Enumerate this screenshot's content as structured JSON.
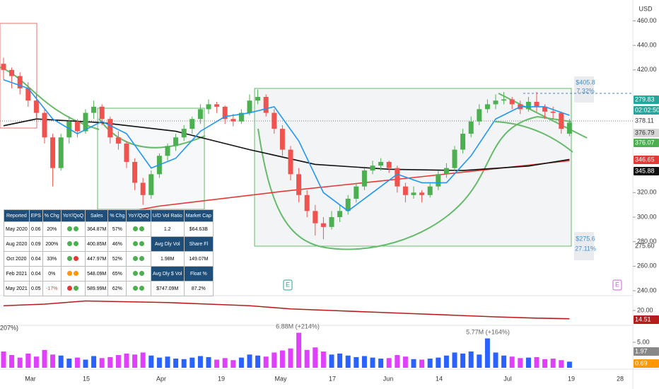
{
  "chart_data": {
    "type": "candlestick",
    "currency": "USD",
    "ylim": [
      236,
      477
    ],
    "yticks": [
      {
        "value": 460,
        "label": "460.00"
      },
      {
        "value": 440,
        "label": "440.00"
      },
      {
        "value": 420,
        "label": "420.00"
      },
      {
        "value": 320,
        "label": "320.00"
      },
      {
        "value": 300,
        "label": "300.00"
      },
      {
        "value": 280,
        "label": "280.00"
      },
      {
        "value": 260,
        "label": "260.00"
      },
      {
        "value": 240,
        "label": "240.00"
      }
    ],
    "x_labels": [
      "Mar",
      "15",
      "Apr",
      "19",
      "May",
      "17",
      "Jun",
      "14",
      "Jul",
      "19",
      "28"
    ],
    "up_color": "#4caf50",
    "down_color": "#ef5350",
    "candles": [
      [
        425,
        430,
        412,
        420
      ],
      [
        420,
        422,
        405,
        415
      ],
      [
        415,
        418,
        400,
        405
      ],
      [
        405,
        410,
        390,
        395
      ],
      [
        395,
        400,
        380,
        385
      ],
      [
        385,
        388,
        360,
        365
      ],
      [
        365,
        368,
        325,
        340
      ],
      [
        340,
        368,
        338,
        365
      ],
      [
        365,
        382,
        360,
        378
      ],
      [
        378,
        380,
        365,
        370
      ],
      [
        370,
        388,
        368,
        385
      ],
      [
        385,
        395,
        380,
        390
      ],
      [
        390,
        392,
        375,
        380
      ],
      [
        380,
        382,
        360,
        365
      ],
      [
        365,
        370,
        355,
        360
      ],
      [
        360,
        362,
        340,
        345
      ],
      [
        345,
        348,
        322,
        328
      ],
      [
        328,
        332,
        310,
        318
      ],
      [
        318,
        338,
        315,
        335
      ],
      [
        335,
        352,
        332,
        350
      ],
      [
        350,
        360,
        346,
        358
      ],
      [
        358,
        368,
        354,
        365
      ],
      [
        365,
        375,
        362,
        372
      ],
      [
        372,
        382,
        368,
        380
      ],
      [
        380,
        392,
        376,
        388
      ],
      [
        388,
        396,
        384,
        392
      ],
      [
        392,
        394,
        385,
        390
      ],
      [
        390,
        391,
        376,
        380
      ],
      [
        380,
        384,
        374,
        378
      ],
      [
        378,
        388,
        376,
        385
      ],
      [
        385,
        400,
        383,
        395
      ],
      [
        395,
        404,
        392,
        398
      ],
      [
        398,
        400,
        382,
        385
      ],
      [
        385,
        388,
        368,
        372
      ],
      [
        372,
        375,
        350,
        355
      ],
      [
        355,
        358,
        330,
        335
      ],
      [
        335,
        340,
        312,
        318
      ],
      [
        318,
        322,
        300,
        305
      ],
      [
        305,
        310,
        285,
        295
      ],
      [
        295,
        300,
        282,
        292
      ],
      [
        292,
        305,
        290,
        300
      ],
      [
        300,
        310,
        296,
        305
      ],
      [
        305,
        318,
        302,
        315
      ],
      [
        315,
        328,
        312,
        325
      ],
      [
        325,
        340,
        322,
        338
      ],
      [
        338,
        346,
        335,
        342
      ],
      [
        342,
        348,
        338,
        345
      ],
      [
        345,
        346,
        336,
        340
      ],
      [
        340,
        342,
        320,
        325
      ],
      [
        325,
        328,
        312,
        318
      ],
      [
        318,
        325,
        315,
        320
      ],
      [
        320,
        322,
        312,
        318
      ],
      [
        318,
        328,
        316,
        325
      ],
      [
        325,
        338,
        322,
        335
      ],
      [
        335,
        344,
        332,
        340
      ],
      [
        340,
        358,
        338,
        355
      ],
      [
        355,
        372,
        352,
        368
      ],
      [
        368,
        382,
        365,
        378
      ],
      [
        378,
        392,
        375,
        388
      ],
      [
        388,
        396,
        385,
        392
      ],
      [
        392,
        400,
        388,
        395
      ],
      [
        395,
        402,
        392,
        396
      ],
      [
        396,
        398,
        388,
        392
      ],
      [
        392,
        395,
        384,
        388
      ],
      [
        388,
        398,
        386,
        394
      ],
      [
        394,
        402,
        386,
        390
      ],
      [
        390,
        392,
        380,
        386
      ],
      [
        386,
        390,
        380,
        385
      ],
      [
        385,
        386,
        368,
        372
      ],
      [
        368,
        380,
        366,
        377
      ]
    ],
    "moving_averages": [
      {
        "color": "#e53935",
        "index": [
          0,
          19,
          34,
          51,
          69
        ],
        "values": [
          287,
          309,
          321,
          333,
          346
        ]
      },
      {
        "color": "#111111",
        "index": [
          0,
          4,
          12,
          21,
          30,
          38,
          47,
          56,
          64,
          69
        ],
        "values": [
          374.5,
          380,
          377,
          370,
          355,
          343,
          339,
          338,
          341.6,
          347
        ]
      },
      {
        "color": "#2196f3",
        "index": [
          0,
          3,
          6,
          9,
          12,
          15,
          18,
          21,
          24,
          27,
          30,
          33,
          36,
          39,
          42,
          45,
          48,
          51,
          54,
          57,
          60,
          63,
          66,
          69
        ],
        "values": [
          412,
          405,
          380,
          368,
          378,
          368,
          340,
          348,
          370,
          382,
          385,
          390,
          362,
          320,
          305,
          320,
          335,
          328,
          328,
          350,
          380,
          390,
          390,
          383
        ]
      }
    ],
    "badges": [
      {
        "label": "279.83",
        "color": "#26a69a"
      },
      {
        "label": "02:02:50",
        "color": "#26a69a"
      },
      {
        "label": "376.79",
        "color": "#d6d6d6"
      },
      {
        "label": "376.07",
        "color": "#4caf50"
      },
      {
        "label": "346.65",
        "color": "#e53935"
      },
      {
        "label": "345.88",
        "color": "#111111"
      }
    ],
    "level_labels": [
      "378.11",
      "275.60"
    ],
    "measure_top": [
      "$405.8",
      "7.32%"
    ],
    "measure_bottom": [
      "$275.6",
      "27.11%"
    ],
    "indicator": {
      "color": "#b71c1c",
      "ylim": [
        10,
        30
      ],
      "yticks": [
        {
          "value": 20,
          "label": "20.00"
        }
      ],
      "badge": "14.51",
      "index": [
        0,
        5,
        10,
        15,
        20,
        25,
        30,
        35,
        40,
        45,
        50,
        55,
        60,
        65,
        69
      ],
      "values": [
        23,
        24,
        26,
        25.5,
        25,
        24,
        23,
        21,
        20,
        19,
        18,
        17,
        16,
        15.2,
        14.8
      ]
    },
    "volume": {
      "ylim": [
        0,
        8
      ],
      "yticks": [
        {
          "value": 5,
          "label": "5.00"
        }
      ],
      "up_color": "#2962ff",
      "down_color": "#e040fb",
      "badges": [
        {
          "label": "1.97",
          "color": "#888888"
        },
        {
          "label": "0.69",
          "color": "#ff9800"
        }
      ],
      "values": [
        3.2,
        2.5,
        2.0,
        2.8,
        2.2,
        3.5,
        2.6,
        2.4,
        1.8,
        2.0,
        1.6,
        2.3,
        1.9,
        2.1,
        2.5,
        2.8,
        2.6,
        3.0,
        2.4,
        2.0,
        2.2,
        1.8,
        1.7,
        2.0,
        2.3,
        2.1,
        1.6,
        1.9,
        1.5,
        2.0,
        2.6,
        2.4,
        2.2,
        3.0,
        3.4,
        3.8,
        6.88,
        3.5,
        4.0,
        3.2,
        2.6,
        2.8,
        2.4,
        2.1,
        2.3,
        2.0,
        1.8,
        1.9,
        2.5,
        2.2,
        1.7,
        1.6,
        1.8,
        2.0,
        2.4,
        3.0,
        2.8,
        3.2,
        2.6,
        5.77,
        3.0,
        2.4,
        2.2,
        1.9,
        2.0,
        2.1,
        1.7,
        1.8,
        1.5,
        1.2
      ],
      "notes": [
        "207%)",
        "6.88M (+214%)",
        "5.77M (+164%)"
      ]
    },
    "earnings_marker": "E"
  },
  "table": {
    "header": [
      "Reported",
      "EPS",
      "% Chg",
      "YoY/QoQ",
      "Sales",
      "% Chg",
      "YoY/QoQ",
      "U/D Vol Ratio",
      "Market Cap"
    ],
    "rows": [
      [
        "May 2020",
        "0.06",
        "20%",
        {
          "dots": [
            "#4caf50",
            "#4caf50"
          ]
        },
        "364.87M",
        "57%",
        {
          "dots": [
            "#4caf50",
            "#4caf50"
          ]
        },
        "1.2",
        "$64.63B"
      ],
      [
        "Aug 2020",
        "0.09",
        "200%",
        {
          "dots": [
            "#4caf50",
            "#4caf50"
          ]
        },
        "400.85M",
        "46%",
        {
          "dots": [
            "#4caf50",
            "#4caf50"
          ]
        },
        "Avg Dly Vol",
        "Share Fl"
      ],
      [
        "Oct 2020",
        "0.04",
        "33%",
        {
          "dots": [
            "#4caf50",
            "#e53935"
          ]
        },
        "447.97M",
        "52%",
        {
          "dots": [
            "#4caf50",
            "#4caf50"
          ]
        },
        "1.98M",
        "149.07M"
      ],
      [
        "Feb 2021",
        "0.04",
        "0%",
        {
          "dots": [
            "#ff9800",
            "#ff9800"
          ]
        },
        "548.09M",
        "65%",
        {
          "dots": [
            "#4caf50",
            "#4caf50"
          ]
        },
        "Avg Dly $ Vol",
        "Float %"
      ],
      [
        "May 2021",
        "0.05",
        "-17%",
        {
          "dots": [
            "#e53935",
            "#4caf50"
          ]
        },
        "589.99M",
        "62%",
        {
          "dots": [
            "#4caf50",
            "#4caf50"
          ]
        },
        "$747.09M",
        "87.2%"
      ]
    ]
  }
}
